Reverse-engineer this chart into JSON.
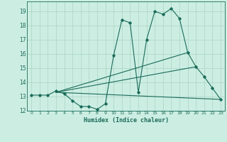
{
  "xlabel": "Humidex (Indice chaleur)",
  "x_ticks": [
    0,
    1,
    2,
    3,
    4,
    5,
    6,
    7,
    8,
    9,
    10,
    11,
    12,
    13,
    14,
    15,
    16,
    17,
    18,
    19,
    20,
    21,
    22,
    23
  ],
  "xlim": [
    -0.5,
    23.5
  ],
  "ylim": [
    12.0,
    19.7
  ],
  "y_ticks": [
    12,
    13,
    14,
    15,
    16,
    17,
    18,
    19
  ],
  "bg_color": "#cceee2",
  "grid_color": "#aad4c4",
  "line_color": "#1a6b5a",
  "line1_x": [
    0,
    1,
    2,
    3,
    4,
    5,
    6,
    7,
    8,
    9,
    10,
    11,
    12,
    13,
    14,
    15,
    16,
    17,
    18,
    19,
    20,
    21,
    22,
    23
  ],
  "line1_y": [
    13.1,
    13.1,
    13.1,
    13.4,
    13.2,
    12.7,
    12.3,
    12.3,
    12.1,
    12.5,
    15.9,
    18.4,
    18.2,
    13.3,
    17.0,
    19.0,
    18.8,
    19.2,
    18.5,
    16.1,
    15.1,
    14.4,
    13.6,
    12.8
  ],
  "line2_x": [
    3,
    23
  ],
  "line2_y": [
    13.3,
    12.8
  ],
  "line3_x": [
    3,
    20
  ],
  "line3_y": [
    13.3,
    15.1
  ],
  "line4_x": [
    3,
    19
  ],
  "line4_y": [
    13.3,
    16.1
  ]
}
